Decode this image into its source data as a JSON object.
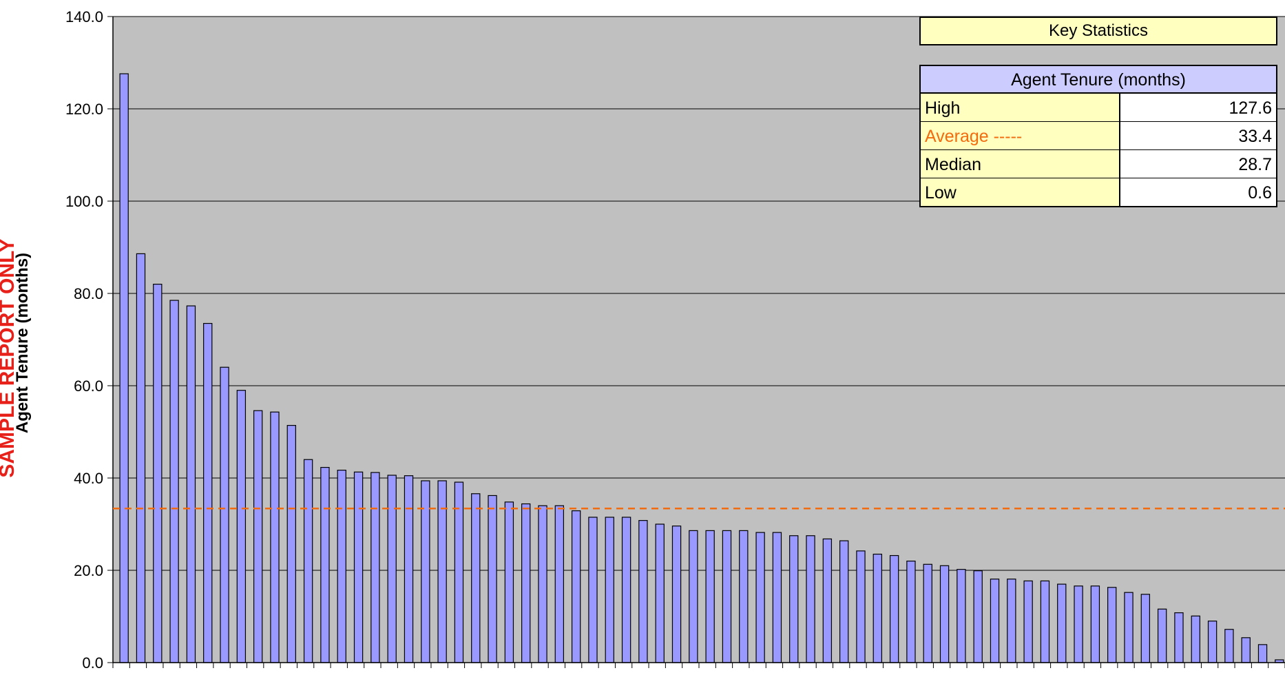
{
  "chart_data": {
    "type": "bar",
    "ylabel": "Agent Tenure (months)",
    "watermark": "SAMPLE REPORT ONLY",
    "ylim": [
      0,
      140
    ],
    "yticks": [
      "0.0",
      "20.0",
      "40.0",
      "60.0",
      "80.0",
      "100.0",
      "120.0",
      "140.0"
    ],
    "grid": true,
    "values": [
      127.6,
      88.6,
      82.0,
      78.5,
      77.3,
      73.5,
      64.0,
      59.0,
      54.6,
      54.3,
      51.4,
      44.0,
      42.3,
      41.7,
      41.3,
      41.2,
      40.6,
      40.5,
      39.4,
      39.4,
      39.1,
      36.6,
      36.2,
      34.8,
      34.4,
      34.0,
      34.0,
      32.9,
      31.5,
      31.5,
      31.5,
      30.8,
      30.0,
      29.6,
      28.6,
      28.6,
      28.6,
      28.6,
      28.2,
      28.2,
      27.5,
      27.5,
      26.8,
      26.4,
      24.2,
      23.5,
      23.2,
      22.0,
      21.3,
      21.0,
      20.2,
      19.9,
      18.1,
      18.1,
      17.7,
      17.7,
      17.0,
      16.6,
      16.6,
      16.3,
      15.2,
      14.8,
      11.6,
      10.8,
      10.1,
      9.0,
      7.2,
      5.4,
      3.9,
      0.6
    ],
    "average": 33.4,
    "average_color": "#f26b0f",
    "bar_color": "#9999ff",
    "plot_bg": "#c0c0c0"
  },
  "key_stats": {
    "title": "Key Statistics",
    "header": "Agent Tenure (months)",
    "rows": [
      {
        "label": "High",
        "value": "127.6"
      },
      {
        "label": "Average -----",
        "value": "33.4"
      },
      {
        "label": "Median",
        "value": "28.7"
      },
      {
        "label": "Low",
        "value": "0.6"
      }
    ]
  }
}
